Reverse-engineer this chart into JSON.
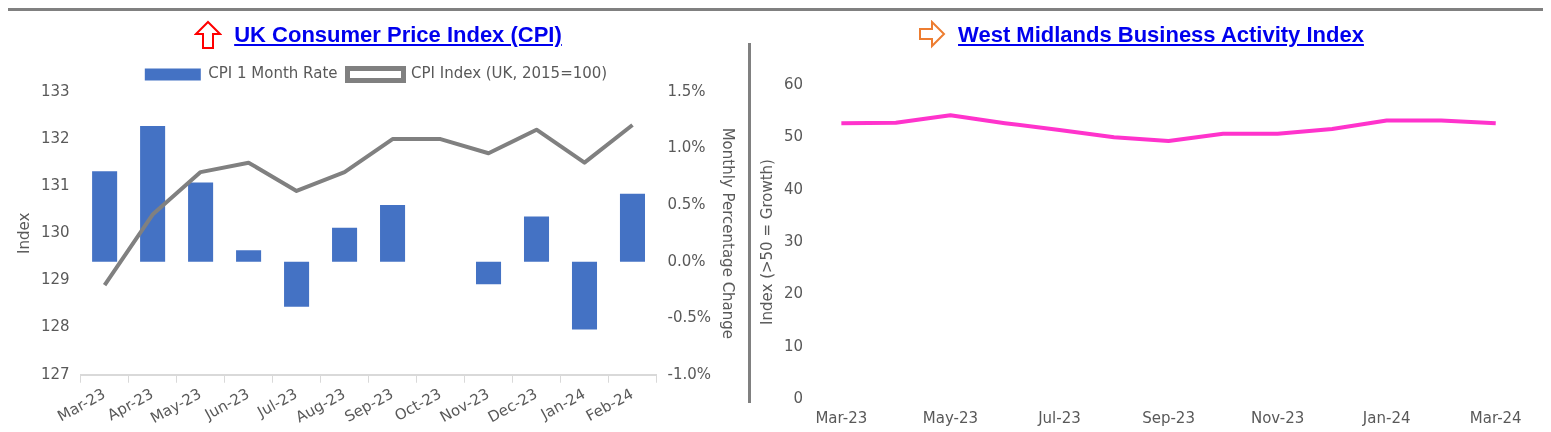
{
  "chart_data": [
    {
      "type": "bar",
      "title": "UK Consumer Price Index (CPI)",
      "ylabel": "Index",
      "y2label": "Monthly Percentage Change",
      "categories": [
        "Mar-23",
        "Apr-23",
        "May-23",
        "Jun-23",
        "Jul-23",
        "Aug-23",
        "Sep-23",
        "Oct-23",
        "Nov-23",
        "Dec-23",
        "Jan-24",
        "Feb-24"
      ],
      "series": [
        {
          "name": "CPI 1 Month Rate",
          "type": "bar",
          "axis": "y2",
          "color": "#4472c4",
          "values": [
            0.8,
            1.2,
            0.7,
            0.1,
            -0.4,
            0.3,
            0.5,
            0.0,
            -0.2,
            0.4,
            -0.6,
            0.6
          ]
        },
        {
          "name": "CPI Index (UK, 2015=100)",
          "type": "line",
          "color": "#808080",
          "values": [
            128.9,
            130.4,
            131.3,
            131.5,
            130.9,
            131.3,
            132.0,
            132.0,
            131.7,
            132.2,
            131.5,
            132.3
          ]
        }
      ],
      "ylim": [
        127,
        133
      ],
      "yticks": [
        127,
        128,
        129,
        130,
        131,
        132,
        133
      ],
      "y2lim": [
        -1.0,
        1.5
      ],
      "y2ticks": [
        {
          "value": -1.0,
          "label": "-1.0%"
        },
        {
          "value": -0.5,
          "label": "-0.5%"
        },
        {
          "value": 0,
          "label": "0.0%"
        },
        {
          "value": 0.5,
          "label": "0.5%"
        },
        {
          "value": 1.0,
          "label": "1.0%"
        },
        {
          "value": 1.5,
          "label": "1.5%"
        }
      ],
      "legend": "top",
      "marker": "none"
    },
    {
      "type": "line",
      "title": "West Midlands Business Activity Index",
      "ylabel": "Index (>50 = Growth)",
      "categories": [
        "Mar-23",
        null,
        "May-23",
        null,
        "Jul-23",
        null,
        "Sep-23",
        null,
        "Nov-23",
        null,
        "Jan-24",
        null,
        "Mar-24"
      ],
      "series": [
        {
          "color": "#ff33cc",
          "values": [
            52.7,
            52.8,
            54.2,
            52.7,
            51.4,
            50.0,
            49.3,
            50.7,
            50.7,
            51.6,
            53.2,
            53.2,
            52.7
          ]
        }
      ],
      "ylim": [
        0,
        60
      ],
      "yticks": [
        0,
        10,
        20,
        30,
        40,
        50,
        60
      ],
      "marker": "none"
    }
  ]
}
